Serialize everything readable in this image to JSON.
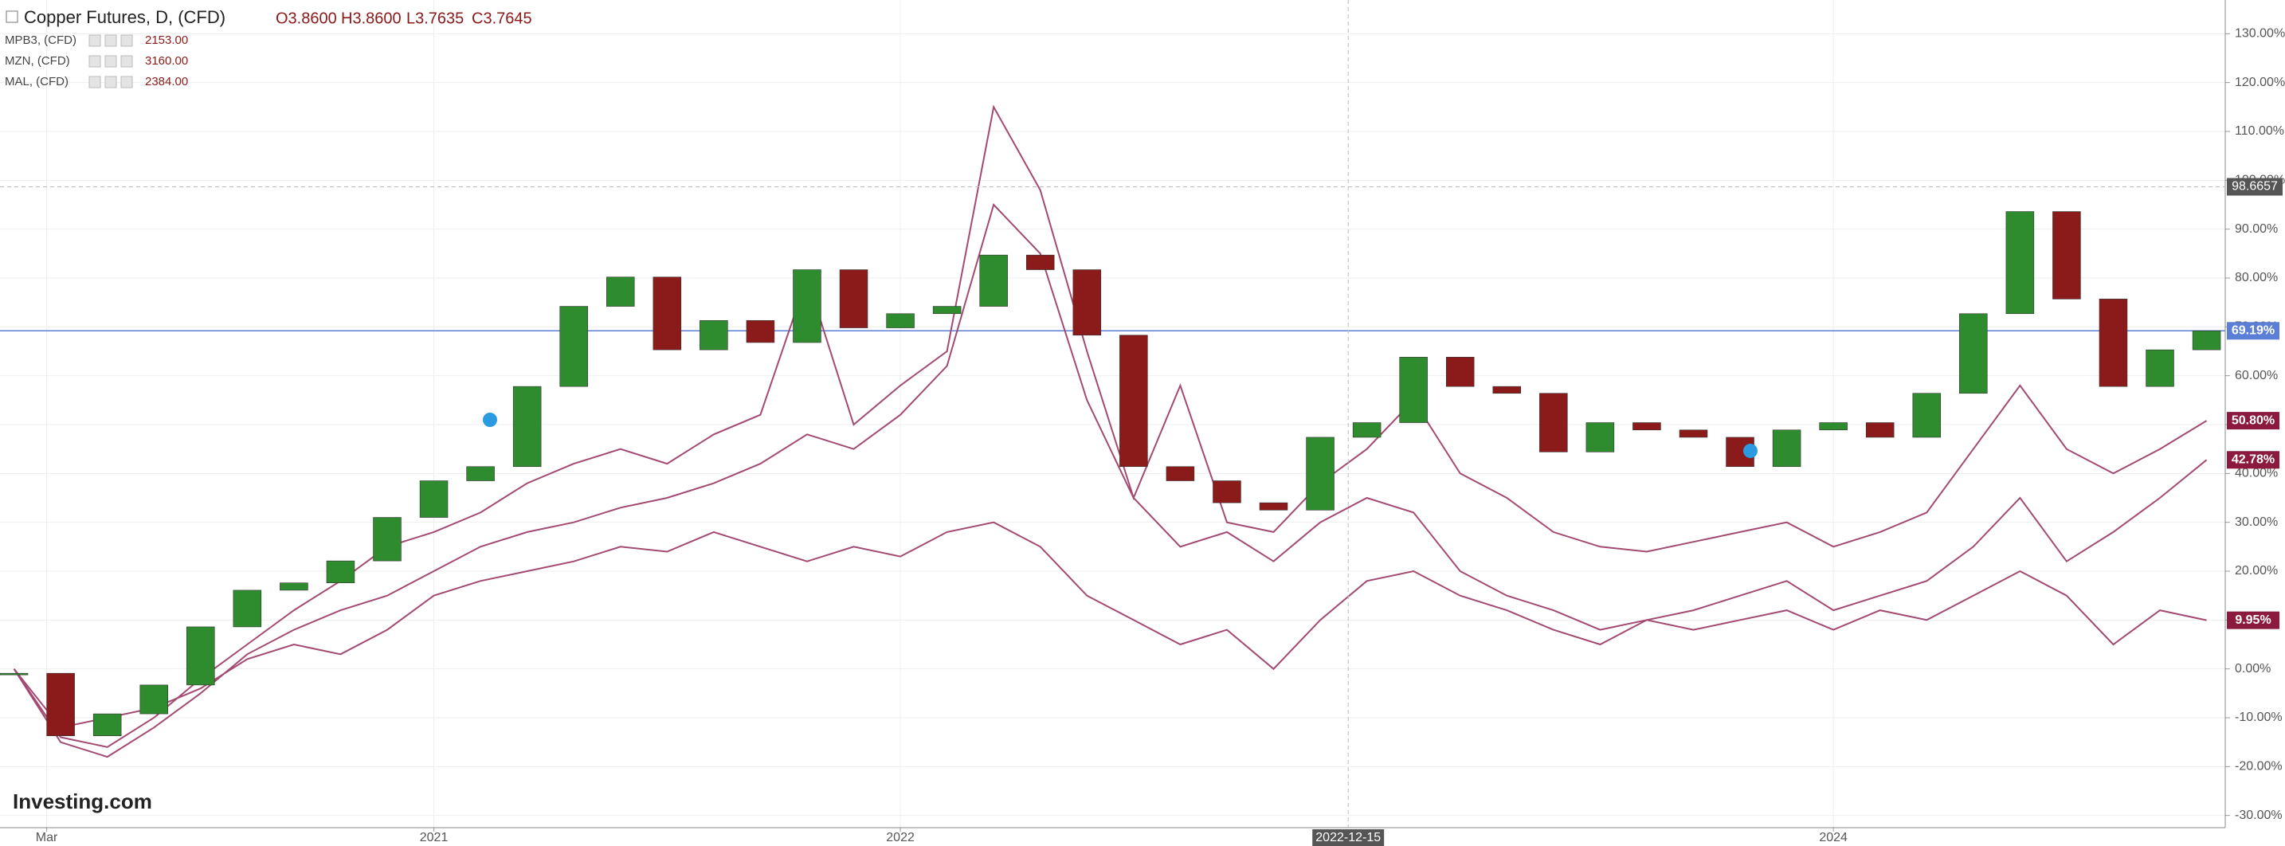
{
  "chart_data": {
    "type": "candlestick",
    "header": {
      "open": "O3.8600",
      "high": "H3.8600",
      "low": "L3.7635",
      "close": "C3.7645"
    },
    "logo": "Investing.com",
    "x": [
      2020.1,
      2020.2,
      2020.3,
      2020.4,
      2020.5,
      2020.6,
      2020.7,
      2020.8,
      2020.9,
      2021.0,
      2021.1,
      2021.2,
      2021.3,
      2021.4,
      2021.5,
      2021.6,
      2021.7,
      2021.8,
      2021.9,
      2022.0,
      2022.1,
      2022.2,
      2022.3,
      2022.4,
      2022.5,
      2022.6,
      2022.7,
      2022.8,
      2022.9,
      2023.0,
      2023.1,
      2023.2,
      2023.3,
      2023.4,
      2023.5,
      2023.6,
      2023.7,
      2023.8,
      2023.9,
      2024.0,
      2024.1,
      2024.2,
      2024.3,
      2024.4,
      2024.5,
      2024.6,
      2024.7,
      2024.8
    ],
    "xlim": [
      2020.07,
      2024.84
    ],
    "xticks": [
      {
        "value": 2020.17,
        "label": "Mar"
      },
      {
        "value": 2021,
        "label": "2021"
      },
      {
        "value": 2022,
        "label": "2022"
      },
      {
        "value": 2024,
        "label": "2024"
      }
    ],
    "ylim": [
      -32.5,
      136.9
    ],
    "yticks": [
      {
        "value": -30,
        "label": "-30.00%"
      },
      {
        "value": -20,
        "label": "-20.00%"
      },
      {
        "value": -10,
        "label": "-10.00%"
      },
      {
        "value": 0,
        "label": "0.00%"
      },
      {
        "value": 10,
        "label": "10.00%"
      },
      {
        "value": 20,
        "label": "20.00%"
      },
      {
        "value": 30,
        "label": "30.00%"
      },
      {
        "value": 40,
        "label": "40.00%"
      },
      {
        "value": 50,
        "label": "50.00%"
      },
      {
        "value": 60,
        "label": "60.00%"
      },
      {
        "value": 70,
        "label": "70.00%"
      },
      {
        "value": 80,
        "label": "80.00%"
      },
      {
        "value": 90,
        "label": "90.00%"
      },
      {
        "value": 100,
        "label": "100.00%"
      },
      {
        "value": 110,
        "label": "110.00%"
      },
      {
        "value": 120,
        "label": "120.00%"
      },
      {
        "value": 130,
        "label": "130.00%"
      }
    ],
    "grid": true,
    "crosshair": {
      "x": 2022.96,
      "x_label": "2022-12-15",
      "y": 98.6657
    },
    "series": [
      {
        "name": "Copper Futures, D, (CFD)",
        "type": "candlestick",
        "up_color": "#2e8b2e",
        "down_color": "#8b1a1a",
        "line_color": "#5b7fd6",
        "values": [
          -0.9,
          -13.7,
          -9.2,
          -3.3,
          8.6,
          16.1,
          17.6,
          22.1,
          31.0,
          38.5,
          41.4,
          57.8,
          74.2,
          80.2,
          65.3,
          71.3,
          66.8,
          81.7,
          69.8,
          72.7,
          74.2,
          84.7,
          81.7,
          68.3,
          41.4,
          38.5,
          34.0,
          32.5,
          47.4,
          50.4,
          63.8,
          57.8,
          56.4,
          44.4,
          50.4,
          48.9,
          47.4,
          41.4,
          48.9,
          50.4,
          47.4,
          56.4,
          72.7,
          93.6,
          75.7,
          57.8,
          65.3,
          69.19
        ],
        "last_label": "69.19%"
      },
      {
        "name": "MPB3, (CFD)",
        "type": "line",
        "color": "#a34a72",
        "price": "2153.00",
        "values": [
          0,
          -12,
          -10,
          -8,
          -4,
          2,
          5,
          3,
          8,
          15,
          18,
          20,
          22,
          25,
          24,
          28,
          25,
          22,
          25,
          23,
          28,
          30,
          25,
          15,
          10,
          5,
          8,
          0,
          10,
          18,
          20,
          15,
          12,
          8,
          5,
          10,
          8,
          10,
          12,
          8,
          12,
          10,
          15,
          20,
          15,
          5,
          12,
          9.95
        ],
        "last_label": "9.95%"
      },
      {
        "name": "MZN, (CFD)",
        "type": "line",
        "color": "#a34a72",
        "price": "3160.00",
        "values": [
          0,
          -15,
          -18,
          -12,
          -5,
          3,
          8,
          12,
          15,
          20,
          25,
          28,
          30,
          33,
          35,
          38,
          42,
          48,
          45,
          52,
          62,
          95,
          85,
          55,
          35,
          25,
          28,
          22,
          30,
          35,
          32,
          20,
          15,
          12,
          8,
          10,
          12,
          15,
          18,
          12,
          15,
          18,
          25,
          35,
          22,
          28,
          35,
          42.78
        ],
        "last_label": "42.78%"
      },
      {
        "name": "MAL, (CFD)",
        "type": "line",
        "color": "#a34a72",
        "price": "2384.00",
        "values": [
          0,
          -14,
          -16,
          -10,
          -2,
          5,
          12,
          18,
          25,
          28,
          32,
          38,
          42,
          45,
          42,
          48,
          52,
          80,
          50,
          58,
          65,
          115,
          98,
          65,
          35,
          58,
          30,
          28,
          38,
          45,
          55,
          40,
          35,
          28,
          25,
          24,
          26,
          28,
          30,
          25,
          28,
          32,
          45,
          58,
          45,
          40,
          45,
          50.8
        ],
        "last_label": "50.80%"
      }
    ]
  }
}
